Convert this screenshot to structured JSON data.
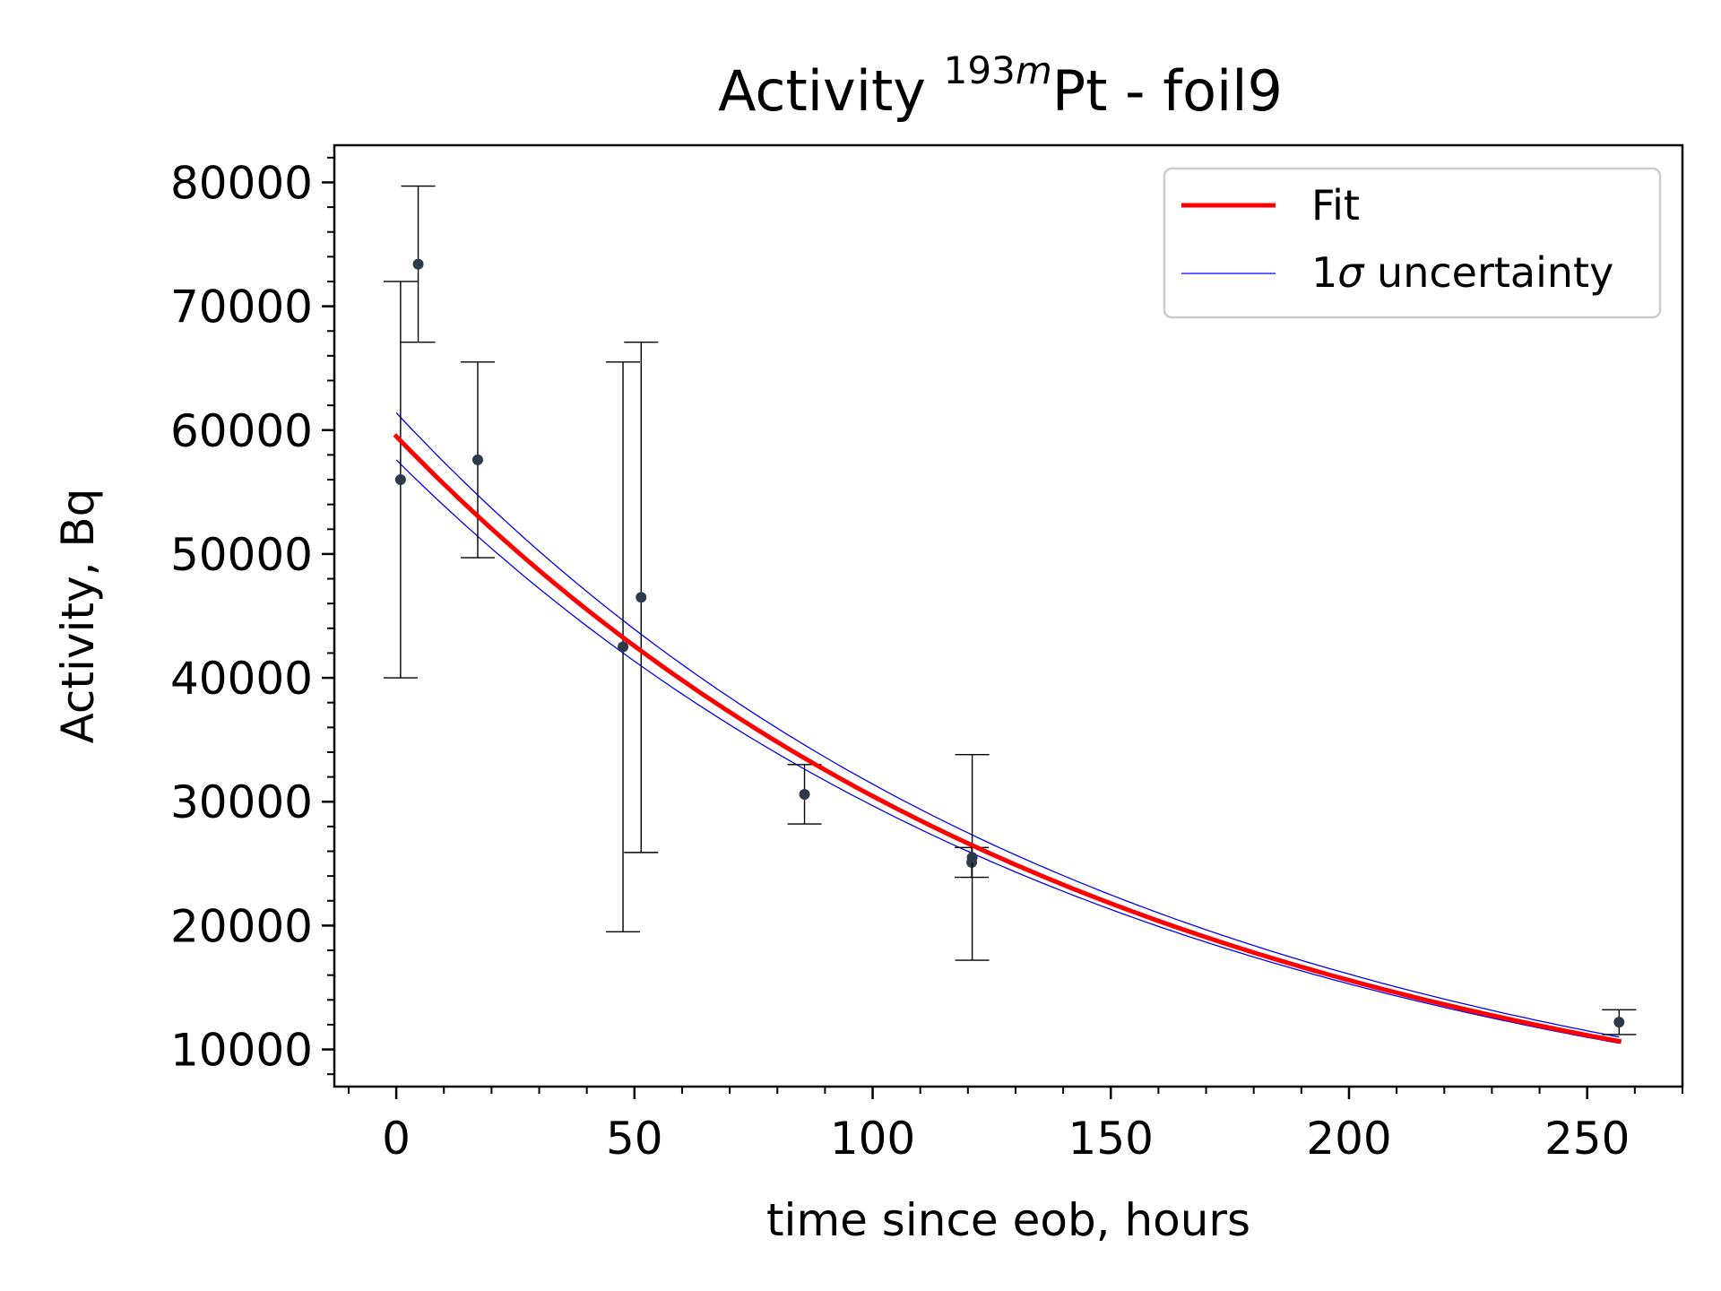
{
  "chart_data": {
    "type": "scatter",
    "title": {
      "prefix": "Activity ",
      "superscript": "193",
      "superscript_italic": "m",
      "suffix": "Pt - foil9"
    },
    "xlabel": "time since eob, hours",
    "ylabel": "Activity, Bq",
    "xlim": [
      -13,
      270
    ],
    "ylim": [
      7000,
      83000
    ],
    "x_ticks": [
      0,
      50,
      100,
      150,
      200,
      250
    ],
    "y_ticks": [
      10000,
      20000,
      30000,
      40000,
      50000,
      60000,
      70000,
      80000
    ],
    "x_minor_step": 10,
    "y_minor_step": 2000,
    "grid": false,
    "legend_position": "top-right",
    "legend": {
      "fit_label": "Fit",
      "band_label_prefix": "1",
      "band_label_symbol": "σ",
      "band_label_suffix": " uncertainty"
    },
    "colors": {
      "fit": "#ff0000",
      "band": "#0000ff",
      "points": "#2d3a4a",
      "errorbars": "#000000"
    },
    "measurements": [
      {
        "x": 0.9,
        "y": 56000,
        "yerr": 16000
      },
      {
        "x": 4.6,
        "y": 73400,
        "yerr": 6300
      },
      {
        "x": 17.1,
        "y": 57600,
        "yerr": 7900
      },
      {
        "x": 47.6,
        "y": 42500,
        "yerr": 23000
      },
      {
        "x": 51.4,
        "y": 46500,
        "yerr": 20600
      },
      {
        "x": 85.7,
        "y": 30600,
        "yerr": 2400
      },
      {
        "x": 120.8,
        "y": 25100,
        "yerr": 1200
      },
      {
        "x": 120.9,
        "y": 25500,
        "yerr": 8300
      },
      {
        "x": 256.7,
        "y": 12200,
        "yerr": 1000
      }
    ],
    "fit": {
      "model": "exponential",
      "x_range": [
        0,
        256.7
      ],
      "A0": 59500,
      "half_life_hours": 103.5,
      "band_upper_A0": 61400,
      "band_upper_at_end": 11000,
      "band_lower_A0": 57600,
      "band_lower_at_end": 10500
    }
  }
}
